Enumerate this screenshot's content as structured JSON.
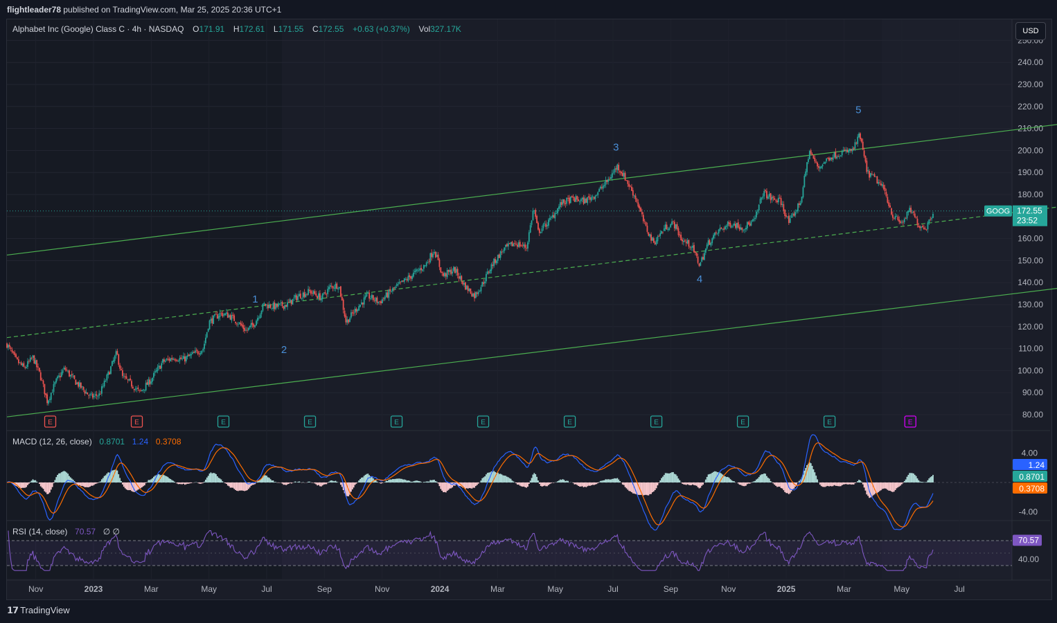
{
  "header": {
    "author": "flightleader78",
    "published_text": "published on TradingView.com, Mar 25, 2025 20:36 UTC+1"
  },
  "legend": {
    "symbol_name": "Alphabet Inc (Google) Class C · 4h · NASDAQ",
    "open_label": "O",
    "open": "171.91",
    "high_label": "H",
    "high": "172.61",
    "low_label": "L",
    "low": "171.55",
    "close_label": "C",
    "close": "172.55",
    "change": "+0.63 (+0.37%)",
    "vol_label": "Vol",
    "vol": "327.17K"
  },
  "currency_button": "USD",
  "price_tag": {
    "ticker": "GOOG",
    "price": "172.55",
    "countdown": "23:52"
  },
  "macd": {
    "title": "MACD (12, 26, close)",
    "hist": "0.8701",
    "macd": "1.24",
    "signal": "0.3708",
    "ticks": [
      "4.00",
      "-4.00"
    ]
  },
  "rsi": {
    "title": "RSI (14, close)",
    "value": "70.57",
    "extra": "∅ ∅",
    "ticks": [
      "40.00"
    ]
  },
  "colors": {
    "up": "#26a69a",
    "down": "#ef5350",
    "channel": "#4caf50",
    "wave": "#4a90d9",
    "macd_line": "#2962ff",
    "signal_line": "#ff6d00",
    "rsi_line": "#7e57c2",
    "earnings_future": "#d500f9"
  },
  "chart_data": {
    "type": "candlestick",
    "title": "Alphabet Inc (Google) Class C · 4h · NASDAQ",
    "ylim": [
      75,
      253
    ],
    "y_ticks": [
      "250.00",
      "240.00",
      "230.00",
      "220.00",
      "210.00",
      "200.00",
      "190.00",
      "180.00",
      "170.00",
      "160.00",
      "150.00",
      "140.00",
      "130.00",
      "120.00",
      "110.00",
      "100.00",
      "90.00",
      "80.00"
    ],
    "x_ticks": [
      "Nov",
      "2023",
      "Mar",
      "May",
      "Jul",
      "Sep",
      "Nov",
      "2024",
      "Mar",
      "May",
      "Jul",
      "Sep",
      "Nov",
      "2025",
      "Mar",
      "May",
      "Jul"
    ],
    "x_months_from_oct2022": [
      1,
      3,
      5,
      7,
      9,
      11,
      13,
      15,
      17,
      19,
      21,
      23,
      25,
      27,
      29,
      31,
      33
    ],
    "price_path": [
      [
        0,
        112
      ],
      [
        0.3,
        105
      ],
      [
        0.6,
        101
      ],
      [
        0.9,
        106
      ],
      [
        1.15,
        98
      ],
      [
        1.4,
        86
      ],
      [
        1.7,
        95
      ],
      [
        2.0,
        101
      ],
      [
        2.3,
        96
      ],
      [
        2.6,
        92
      ],
      [
        2.9,
        88
      ],
      [
        3.2,
        89
      ],
      [
        3.5,
        98
      ],
      [
        3.8,
        108
      ],
      [
        4.0,
        97
      ],
      [
        4.3,
        94
      ],
      [
        4.6,
        90
      ],
      [
        5.0,
        96
      ],
      [
        5.4,
        104
      ],
      [
        5.8,
        106
      ],
      [
        6.1,
        105
      ],
      [
        6.4,
        107
      ],
      [
        6.8,
        110
      ],
      [
        7.0,
        122
      ],
      [
        7.4,
        126
      ],
      [
        7.7,
        125
      ],
      [
        8.0,
        122
      ],
      [
        8.3,
        118
      ],
      [
        8.6,
        122
      ],
      [
        8.9,
        130
      ],
      [
        9.3,
        129
      ],
      [
        9.7,
        130
      ],
      [
        10.1,
        134
      ],
      [
        10.5,
        136
      ],
      [
        10.9,
        133
      ],
      [
        11.2,
        138
      ],
      [
        11.5,
        139
      ],
      [
        11.75,
        122
      ],
      [
        12.1,
        128
      ],
      [
        12.5,
        134
      ],
      [
        12.9,
        131
      ],
      [
        13.3,
        136
      ],
      [
        13.7,
        140
      ],
      [
        14.1,
        144
      ],
      [
        14.5,
        148
      ],
      [
        14.8,
        155
      ],
      [
        15.1,
        143
      ],
      [
        15.5,
        146
      ],
      [
        15.9,
        138
      ],
      [
        16.2,
        134
      ],
      [
        16.5,
        140
      ],
      [
        16.8,
        148
      ],
      [
        17.2,
        155
      ],
      [
        17.6,
        158
      ],
      [
        18.0,
        156
      ],
      [
        18.25,
        174
      ],
      [
        18.4,
        163
      ],
      [
        18.8,
        168
      ],
      [
        19.2,
        176
      ],
      [
        19.6,
        178
      ],
      [
        20.0,
        177
      ],
      [
        20.4,
        180
      ],
      [
        20.8,
        186
      ],
      [
        21.15,
        193
      ],
      [
        21.4,
        188
      ],
      [
        21.8,
        178
      ],
      [
        22.1,
        166
      ],
      [
        22.4,
        158
      ],
      [
        22.8,
        165
      ],
      [
        23.1,
        167
      ],
      [
        23.4,
        159
      ],
      [
        23.7,
        157
      ],
      [
        24.0,
        148
      ],
      [
        24.3,
        158
      ],
      [
        24.7,
        164
      ],
      [
        25.1,
        167
      ],
      [
        25.5,
        165
      ],
      [
        25.9,
        168
      ],
      [
        26.2,
        181
      ],
      [
        26.5,
        178
      ],
      [
        26.8,
        177
      ],
      [
        27.1,
        167
      ],
      [
        27.5,
        177
      ],
      [
        27.8,
        200
      ],
      [
        28.1,
        192
      ],
      [
        28.5,
        197
      ],
      [
        28.9,
        199
      ],
      [
        29.3,
        200
      ],
      [
        29.55,
        207
      ],
      [
        29.8,
        190
      ],
      [
        30.1,
        187
      ],
      [
        30.4,
        182
      ],
      [
        30.7,
        170
      ],
      [
        31.0,
        167
      ],
      [
        31.3,
        173
      ],
      [
        31.6,
        166
      ],
      [
        31.85,
        165
      ],
      [
        32.1,
        172.55
      ]
    ],
    "channel_upper": [
      [
        0,
        152.5
      ],
      [
        38.35,
        215.0
      ]
    ],
    "channel_mid": [
      [
        0,
        115
      ],
      [
        38.35,
        177.5
      ]
    ],
    "channel_lower": [
      [
        0,
        79
      ],
      [
        38.35,
        140.5
      ]
    ],
    "wave_labels": [
      {
        "label": "1",
        "month": 8.6,
        "value": 131
      },
      {
        "label": "2",
        "month": 9.6,
        "value": 108
      },
      {
        "label": "3",
        "month": 21.1,
        "value": 200
      },
      {
        "label": "4",
        "month": 24.0,
        "value": 140
      },
      {
        "label": "5",
        "month": 29.5,
        "value": 217
      }
    ],
    "earnings_months": [
      1.5,
      4.5,
      7.5,
      10.5,
      13.5,
      16.5,
      19.5,
      22.5,
      25.5,
      28.5,
      31.3
    ],
    "earnings_future_count": 1
  }
}
